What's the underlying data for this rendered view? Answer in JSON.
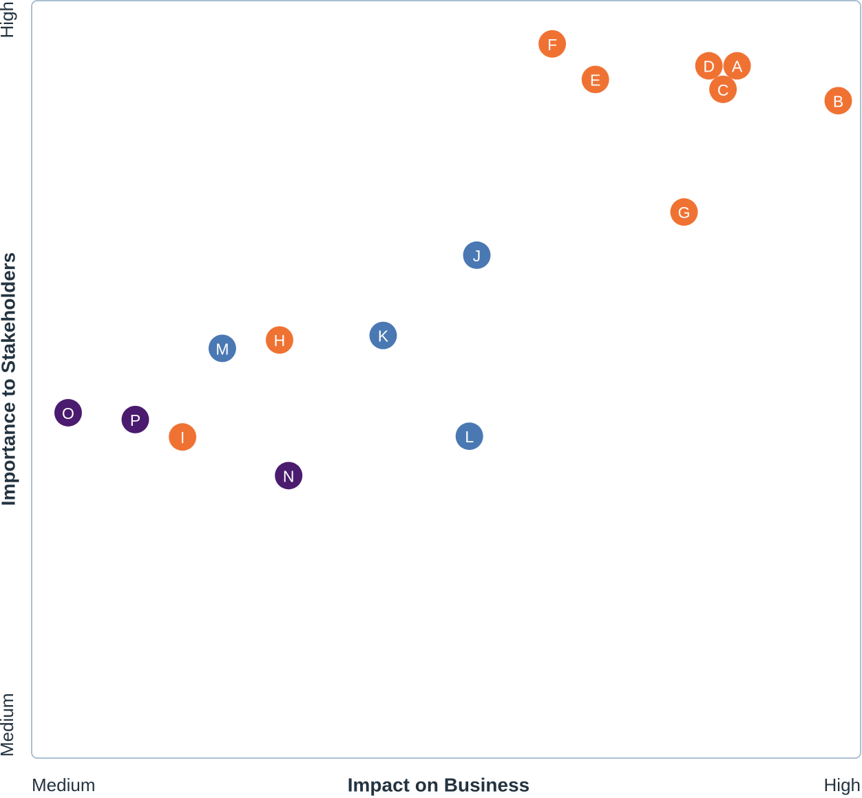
{
  "chart_data": {
    "type": "scatter",
    "title": "",
    "xlabel": "Impact on Business",
    "ylabel": "Importance to Stakeholders",
    "x_tick_labels": {
      "min": "Medium",
      "max": "High"
    },
    "y_tick_labels": {
      "min": "Medium",
      "max": "High"
    },
    "xlim": [
      0,
      100
    ],
    "ylim": [
      0,
      100
    ],
    "grid": false,
    "legend": "none",
    "colors": {
      "orange": "#f07233",
      "blue": "#4a78b3",
      "purple": "#4a1b6e",
      "frame": "#a9bfd3",
      "text": "#233340"
    },
    "points": [
      {
        "label": "A",
        "x": 85.1,
        "y": 91.4,
        "color": "orange"
      },
      {
        "label": "B",
        "x": 97.3,
        "y": 86.8,
        "color": "orange"
      },
      {
        "label": "C",
        "x": 83.4,
        "y": 88.3,
        "color": "orange"
      },
      {
        "label": "D",
        "x": 81.7,
        "y": 91.4,
        "color": "orange"
      },
      {
        "label": "E",
        "x": 68.0,
        "y": 89.6,
        "color": "orange"
      },
      {
        "label": "F",
        "x": 62.8,
        "y": 94.3,
        "color": "orange"
      },
      {
        "label": "G",
        "x": 78.7,
        "y": 72.1,
        "color": "orange"
      },
      {
        "label": "H",
        "x": 29.9,
        "y": 55.2,
        "color": "orange"
      },
      {
        "label": "I",
        "x": 18.2,
        "y": 42.4,
        "color": "orange"
      },
      {
        "label": "J",
        "x": 53.7,
        "y": 66.4,
        "color": "blue"
      },
      {
        "label": "K",
        "x": 42.4,
        "y": 55.8,
        "color": "blue"
      },
      {
        "label": "L",
        "x": 52.8,
        "y": 42.5,
        "color": "blue"
      },
      {
        "label": "M",
        "x": 23.0,
        "y": 54.1,
        "color": "blue"
      },
      {
        "label": "N",
        "x": 31.0,
        "y": 37.3,
        "color": "purple"
      },
      {
        "label": "O",
        "x": 4.4,
        "y": 45.6,
        "color": "purple"
      },
      {
        "label": "P",
        "x": 12.5,
        "y": 44.7,
        "color": "purple"
      }
    ]
  }
}
